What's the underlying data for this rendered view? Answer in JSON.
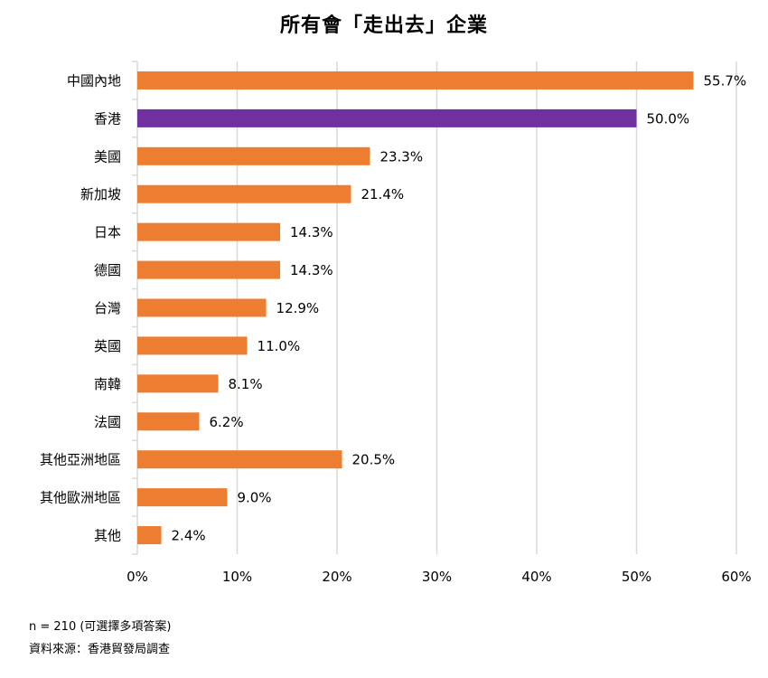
{
  "chart_data": {
    "type": "bar",
    "orientation": "horizontal",
    "title": "所有會「走出去」企業",
    "categories": [
      "中國內地",
      "香港",
      "美國",
      "新加坡",
      "日本",
      "德國",
      "台灣",
      "英國",
      "南韓",
      "法國",
      "其他亞洲地區",
      "其他歐洲地區",
      "其他"
    ],
    "values": [
      55.7,
      50.0,
      23.3,
      21.4,
      14.3,
      14.3,
      12.9,
      11.0,
      8.1,
      6.2,
      20.5,
      9.0,
      2.4
    ],
    "value_labels": [
      "55.7%",
      "50.0%",
      "23.3%",
      "21.4%",
      "14.3%",
      "14.3%",
      "12.9%",
      "11.0%",
      "8.1%",
      "6.2%",
      "20.5%",
      "9.0%",
      "2.4%"
    ],
    "highlight_category": "香港",
    "xlim": [
      0,
      60
    ],
    "xticks": [
      0,
      10,
      20,
      30,
      40,
      50,
      60
    ],
    "xtick_labels": [
      "0%",
      "10%",
      "20%",
      "30%",
      "40%",
      "50%",
      "60%"
    ],
    "grid": true,
    "colors": {
      "bar": "#ED7D31",
      "highlight": "#7030A0",
      "grid": "#D9D9D9"
    }
  },
  "footnotes": {
    "sample": "n = 210 (可選擇多項答案)",
    "source": "資料來源：香港貿發局調查"
  }
}
